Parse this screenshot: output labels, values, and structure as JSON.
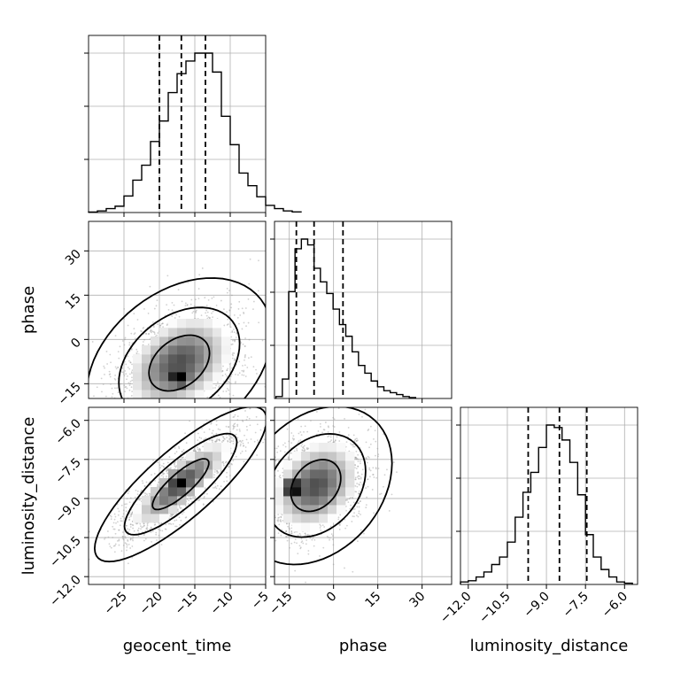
{
  "chart_data": {
    "type": "corner",
    "parameters": [
      "geocent_time",
      "phase",
      "luminosity_distance"
    ],
    "axis_labels": {
      "geocent_time": "geocent_time",
      "phase": "phase",
      "luminosity_distance": "luminosity_distance"
    },
    "ranges": {
      "geocent_time": [
        -30,
        -5
      ],
      "phase": [
        -20,
        40
      ],
      "luminosity_distance": [
        -12.3,
        -5.5
      ]
    },
    "ticks": {
      "geocent_time": [
        -25,
        -20,
        -15,
        -10,
        -5
      ],
      "phase": [
        -15,
        0,
        15,
        30
      ],
      "luminosity_distance": [
        -12.0,
        -10.5,
        -9.0,
        -7.5,
        -6.0
      ]
    },
    "tick_labels": {
      "geocent_time": [
        "−25",
        "−20",
        "−15",
        "−10",
        "−5"
      ],
      "phase": [
        "−15",
        "0",
        "15",
        "30"
      ],
      "luminosity_distance": [
        "−12.0",
        "−10.5",
        "−9.0",
        "−7.5",
        "−6.0"
      ]
    },
    "quantiles": {
      "geocent_time": [
        -20.0,
        -16.9,
        -13.5
      ],
      "phase": [
        -12.6,
        -6.6,
        3.2
      ],
      "luminosity_distance": [
        -9.7,
        -8.5,
        -7.45
      ]
    },
    "histograms": {
      "geocent_time": {
        "edges_start": -30,
        "bin_width": 1.25,
        "counts": [
          0.3,
          1.0,
          2.5,
          4.0,
          10.5,
          20.5,
          30.0,
          45.0,
          58.0,
          76.0,
          88.0,
          96.0,
          101.0,
          101.0,
          89.0,
          61.0,
          43.0,
          25.0,
          17.0,
          10.0,
          4.5,
          2.5,
          1.0,
          0.4
        ]
      },
      "phase": {
        "edges_start": -19.5,
        "bin_width": 2.15,
        "counts": [
          1.0,
          10.0,
          55.0,
          77.0,
          82.0,
          79.0,
          67.0,
          60.0,
          54.0,
          46.0,
          38.0,
          32.0,
          24.0,
          17.0,
          13.0,
          9.0,
          6.0,
          4.0,
          3.0,
          2.0,
          1.0,
          0.5
        ]
      },
      "luminosity_distance": {
        "edges_start": -12.3,
        "bin_width": 0.3,
        "counts": [
          1.0,
          1.5,
          3.0,
          5.0,
          8.0,
          11.0,
          17.0,
          27.0,
          37.0,
          45.0,
          55.0,
          64.0,
          63.0,
          58.0,
          49.0,
          36.0,
          20.0,
          11.0,
          6.0,
          3.0,
          1.0,
          0.5
        ]
      }
    },
    "joint": [
      {
        "x": "geocent_time",
        "y": "phase",
        "center": [
          -17.2,
          -8.0
        ],
        "sigma": [
          4.3,
          9.5
        ],
        "rho": 0.35,
        "peak": [
          -17.2,
          -12.5
        ]
      },
      {
        "x": "geocent_time",
        "y": "luminosity_distance",
        "center": [
          -17.0,
          -8.45
        ],
        "sigma": [
          4.0,
          0.98
        ],
        "rho": 0.83,
        "peak": [
          -17.0,
          -8.4
        ]
      },
      {
        "x": "phase",
        "y": "luminosity_distance",
        "center": [
          -6.0,
          -8.5
        ],
        "sigma": [
          8.5,
          1.0
        ],
        "rho": 0.28,
        "peak": [
          -13.5,
          -8.6
        ]
      }
    ],
    "contour_levels": [
      0.39,
      0.86,
      0.99
    ],
    "grid": true
  }
}
